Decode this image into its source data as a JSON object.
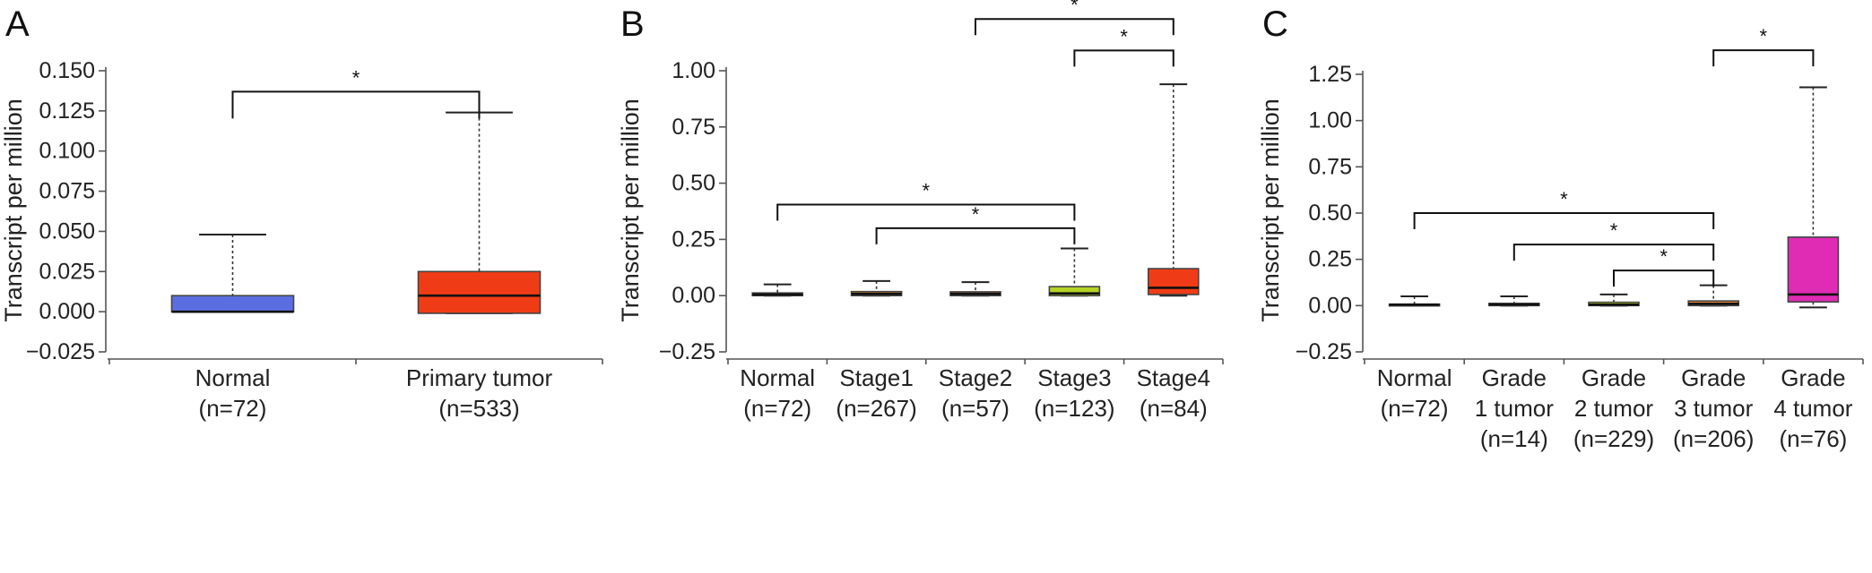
{
  "panels": [
    {
      "letter": "A",
      "ylabel": "Transcript per million",
      "ticks": [
        "0.150",
        "0.125",
        "0.100",
        "0.075",
        "0.050",
        "0.025",
        "0.000",
        "−0.025"
      ]
    },
    {
      "letter": "B",
      "ylabel": "Transcript per million",
      "ticks": [
        "1.00",
        "0.75",
        "0.50",
        "0.25",
        "0.00",
        "−0.25"
      ]
    },
    {
      "letter": "C",
      "ylabel": "Transcript per million",
      "ticks": [
        "1.25",
        "1.00",
        "0.75",
        "0.50",
        "0.25",
        "0.00",
        "−0.25"
      ]
    }
  ],
  "chart_data": [
    {
      "type": "box",
      "title": "",
      "ylabel": "Transcript per million",
      "ylim": [
        -0.025,
        0.15
      ],
      "yticks": [
        -0.025,
        0,
        0.025,
        0.05,
        0.075,
        0.1,
        0.125,
        0.15
      ],
      "categories": [
        {
          "label": [
            "Normal",
            "(n=72)"
          ],
          "color": "#5b6ee1",
          "min": 0.0,
          "q1": 0.0,
          "median": 0.0,
          "q3": 0.01,
          "max": 0.048
        },
        {
          "label": [
            "Primary tumor",
            "(n=533)"
          ],
          "color": "#f03c16",
          "min": -0.001,
          "q1": -0.001,
          "median": 0.01,
          "q3": 0.025,
          "max": 0.124
        }
      ],
      "significance": [
        {
          "from": 0,
          "to": 1,
          "level": 0.137,
          "label": "*"
        }
      ]
    },
    {
      "type": "box",
      "title": "",
      "ylabel": "Transcript per million",
      "ylim": [
        -0.25,
        1.0
      ],
      "yticks": [
        -0.25,
        0,
        0.25,
        0.5,
        0.75,
        1.0
      ],
      "categories": [
        {
          "label": [
            "Normal",
            "(n=72)"
          ],
          "color": "#5b79e6",
          "min": 0.0,
          "q1": 0.0,
          "median": 0.005,
          "q3": 0.012,
          "max": 0.05
        },
        {
          "label": [
            "Stage1",
            "(n=267)"
          ],
          "color": "#f39c2c",
          "min": 0.0,
          "q1": 0.0,
          "median": 0.008,
          "q3": 0.018,
          "max": 0.065
        },
        {
          "label": [
            "Stage2",
            "(n=57)"
          ],
          "color": "#e88a33",
          "min": 0.0,
          "q1": 0.0,
          "median": 0.008,
          "q3": 0.017,
          "max": 0.06
        },
        {
          "label": [
            "Stage3",
            "(n=123)"
          ],
          "color": "#b4d323",
          "min": 0.0,
          "q1": 0.0,
          "median": 0.01,
          "q3": 0.04,
          "max": 0.21
        },
        {
          "label": [
            "Stage4",
            "(n=84)"
          ],
          "color": "#f03c16",
          "min": 0.0,
          "q1": 0.005,
          "median": 0.035,
          "q3": 0.12,
          "max": 0.94
        }
      ],
      "significance": [
        {
          "from": 2,
          "to": 4,
          "level": 1.23,
          "label": "*"
        },
        {
          "from": 3,
          "to": 4,
          "level": 1.09,
          "label": "*"
        },
        {
          "from": 0,
          "to": 3,
          "level": 0.405,
          "label": "*"
        },
        {
          "from": 1,
          "to": 3,
          "level": 0.3,
          "label": "*"
        }
      ]
    },
    {
      "type": "box",
      "title": "",
      "ylabel": "Transcript per million",
      "ylim": [
        -0.25,
        1.25
      ],
      "yticks": [
        -0.25,
        0,
        0.25,
        0.5,
        0.75,
        1.0,
        1.25
      ],
      "categories": [
        {
          "label": [
            "Normal",
            "(n=72)"
          ],
          "color": "#24207a",
          "min": 0.0,
          "q1": 0.0,
          "median": 0.005,
          "q3": 0.008,
          "max": 0.05
        },
        {
          "label": [
            "Grade",
            "1 tumor",
            "(n=14)"
          ],
          "color": "#f39c2c",
          "min": 0.0,
          "q1": 0.0,
          "median": 0.006,
          "q3": 0.012,
          "max": 0.05
        },
        {
          "label": [
            "Grade",
            "2 tumor",
            "(n=229)"
          ],
          "color": "#b4d323",
          "min": 0.0,
          "q1": 0.0,
          "median": 0.005,
          "q3": 0.018,
          "max": 0.06
        },
        {
          "label": [
            "Grade",
            "3 tumor",
            "(n=206)"
          ],
          "color": "#e88a33",
          "min": 0.0,
          "q1": 0.0,
          "median": 0.01,
          "q3": 0.025,
          "max": 0.11
        },
        {
          "label": [
            "Grade",
            "4 tumor",
            "(n=76)"
          ],
          "color": "#e02bb4",
          "min": -0.01,
          "q1": 0.02,
          "median": 0.06,
          "q3": 0.37,
          "max": 1.18
        }
      ],
      "significance": [
        {
          "from": 3,
          "to": 4,
          "level": 1.38,
          "label": "*"
        },
        {
          "from": 0,
          "to": 3,
          "level": 0.5,
          "label": "*"
        },
        {
          "from": 1,
          "to": 3,
          "level": 0.33,
          "label": "*"
        },
        {
          "from": 2,
          "to": 3,
          "level": 0.19,
          "label": "*"
        }
      ]
    }
  ]
}
